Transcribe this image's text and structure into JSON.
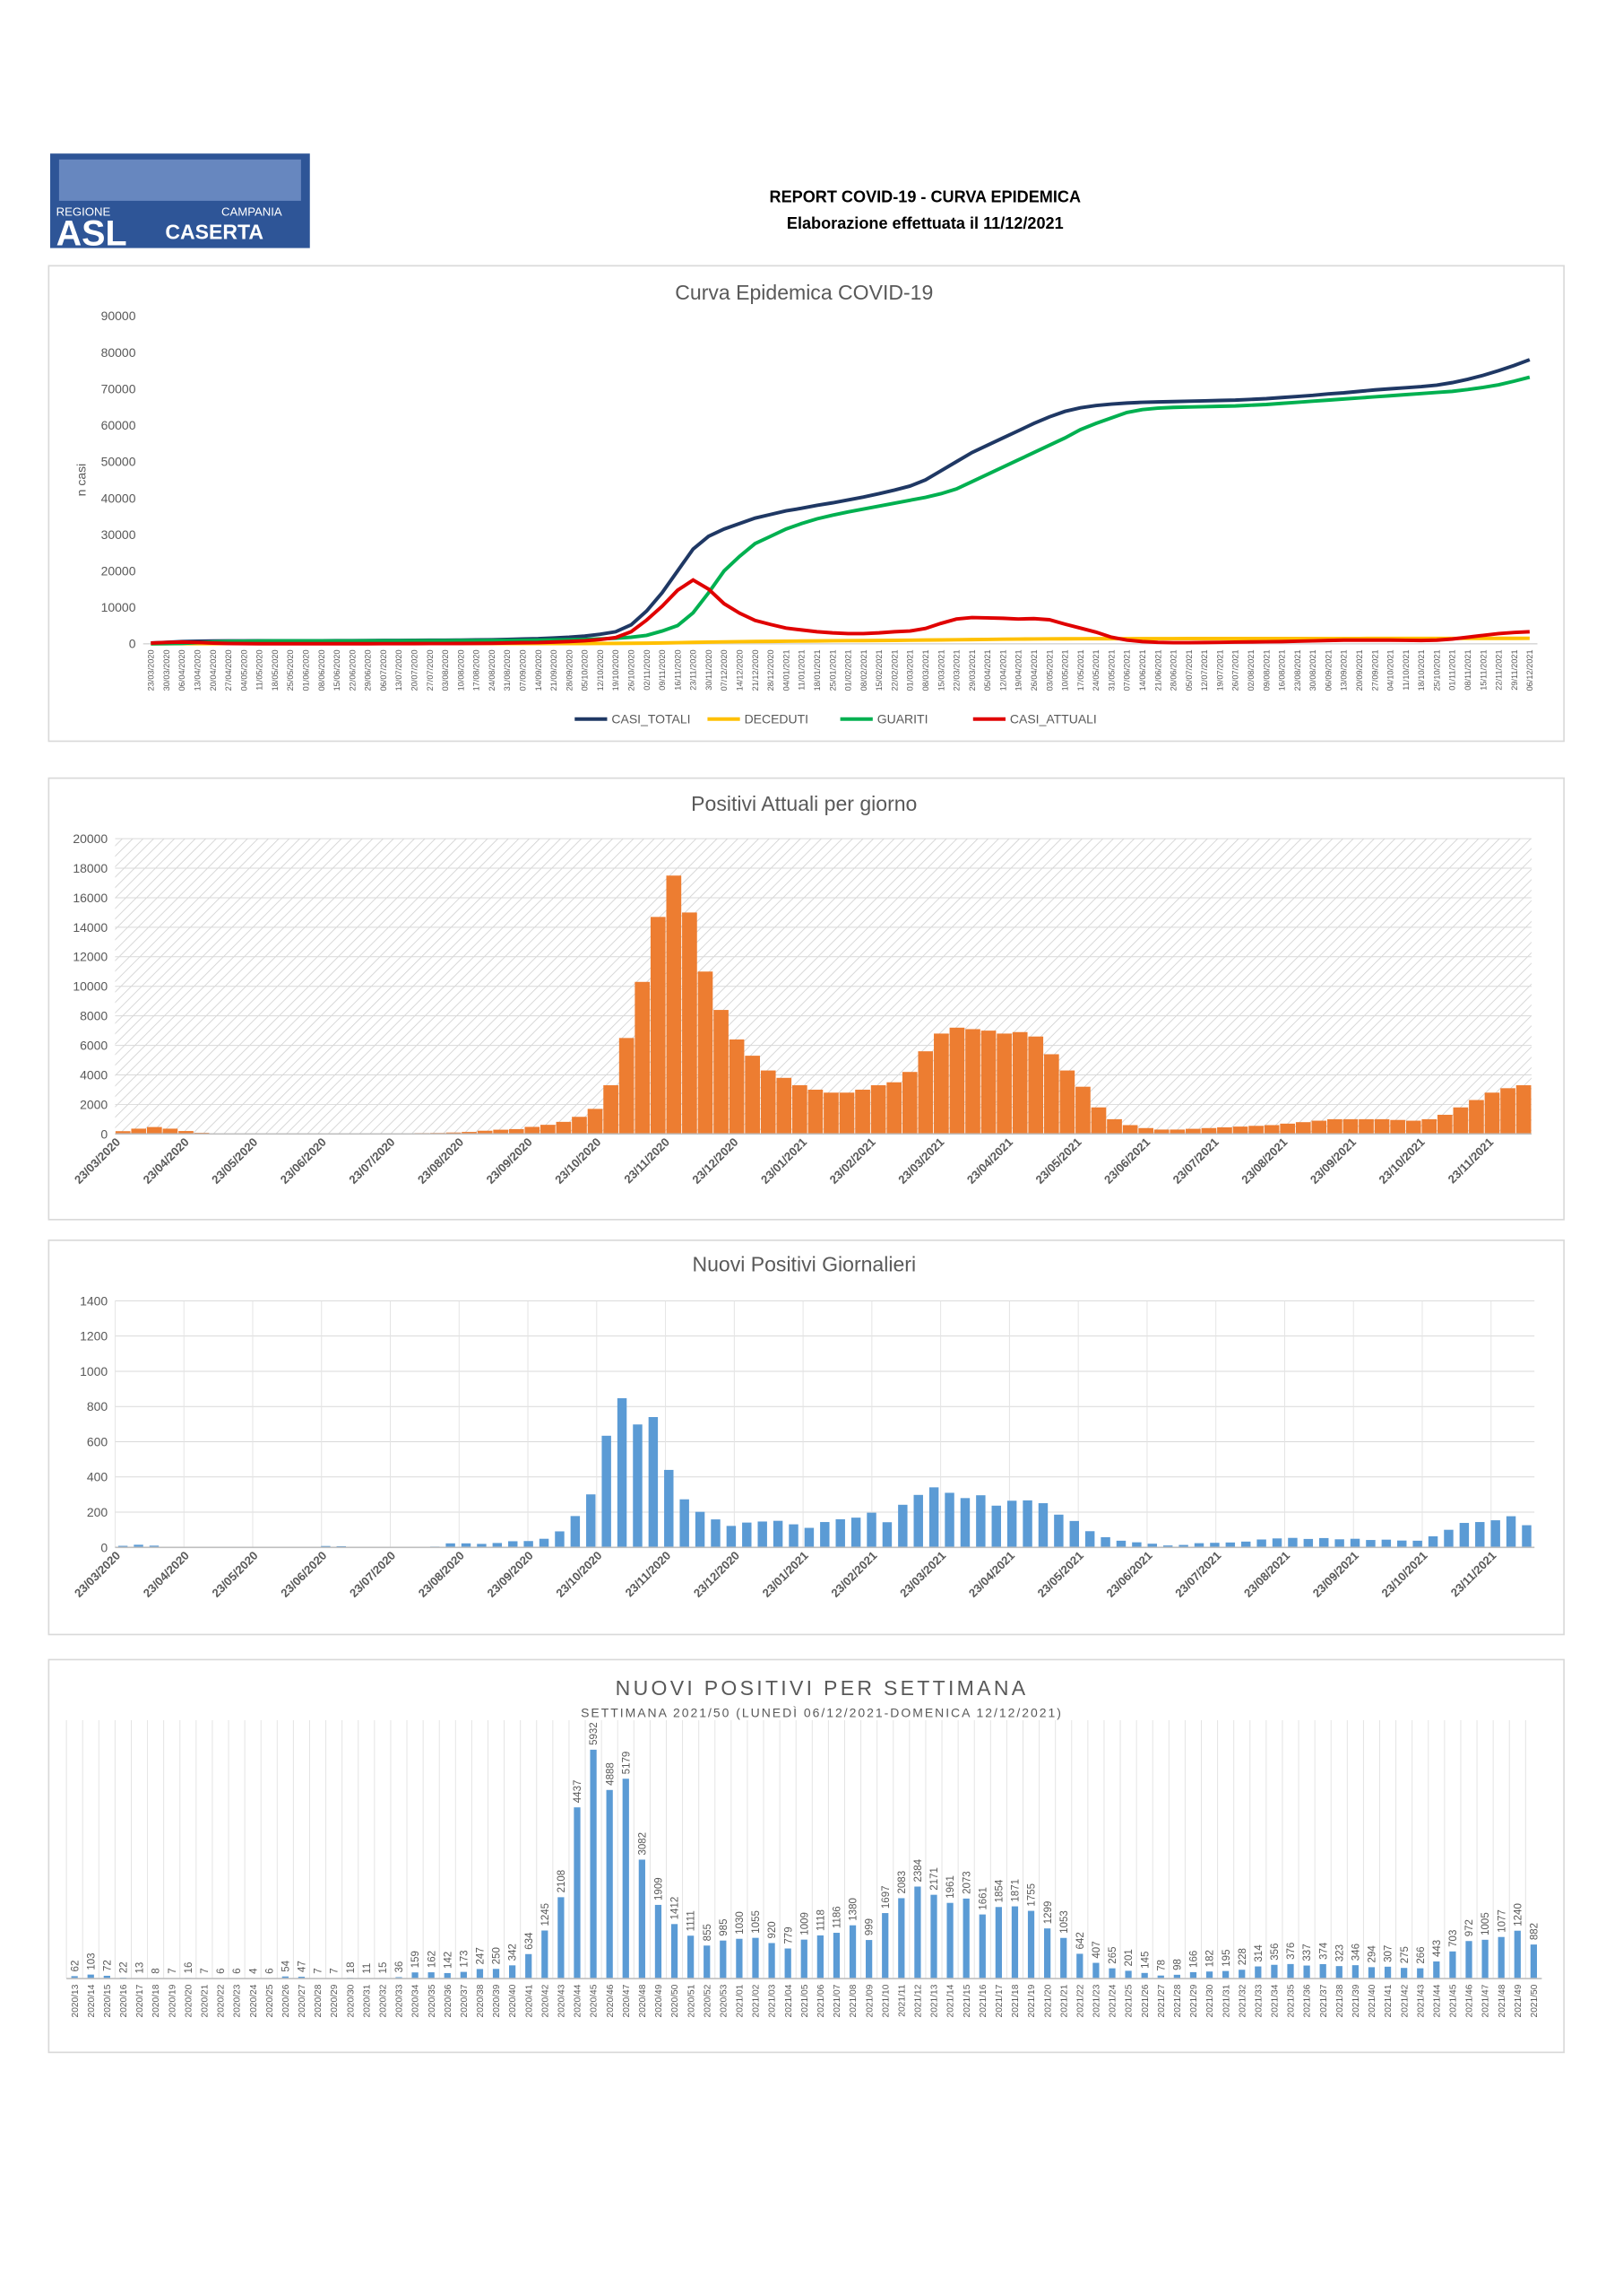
{
  "header": {
    "logo": {
      "line1": "REGIONE",
      "line2": "CAMPANIA",
      "line3": "ASL",
      "line4": "CASERTA"
    },
    "title": "REPORT COVID-19 - CURVA EPIDEMICA",
    "subtitle": "Elaborazione effettuata il 11/12/2021"
  },
  "chart_data": [
    {
      "type": "line",
      "title": "Curva Epidemica COVID-19",
      "y_label": "n casi",
      "legend": "bottom",
      "ylim": [
        0,
        90000
      ],
      "yticks": [
        0,
        10000,
        20000,
        30000,
        40000,
        50000,
        60000,
        70000,
        80000,
        90000
      ],
      "categories": [
        "23/03/2020",
        "30/03/2020",
        "06/04/2020",
        "13/04/2020",
        "20/04/2020",
        "27/04/2020",
        "04/05/2020",
        "11/05/2020",
        "18/05/2020",
        "25/05/2020",
        "01/06/2020",
        "08/06/2020",
        "15/06/2020",
        "22/06/2020",
        "29/06/2020",
        "06/07/2020",
        "13/07/2020",
        "20/07/2020",
        "27/07/2020",
        "03/08/2020",
        "10/08/2020",
        "17/08/2020",
        "24/08/2020",
        "31/08/2020",
        "07/09/2020",
        "14/09/2020",
        "21/09/2020",
        "28/09/2020",
        "05/10/2020",
        "12/10/2020",
        "19/10/2020",
        "26/10/2020",
        "02/11/2020",
        "09/11/2020",
        "16/11/2020",
        "23/11/2020",
        "30/11/2020",
        "07/12/2020",
        "14/12/2020",
        "21/12/2020",
        "28/12/2020",
        "04/01/2021",
        "11/01/2021",
        "18/01/2021",
        "25/01/2021",
        "01/02/2021",
        "08/02/2021",
        "15/02/2021",
        "22/02/2021",
        "01/03/2021",
        "08/03/2021",
        "15/03/2021",
        "22/03/2021",
        "29/03/2021",
        "05/04/2021",
        "12/04/2021",
        "19/04/2021",
        "26/04/2021",
        "03/05/2021",
        "10/05/2021",
        "17/05/2021",
        "24/05/2021",
        "31/05/2021",
        "07/06/2021",
        "14/06/2021",
        "21/06/2021",
        "28/06/2021",
        "05/07/2021",
        "12/07/2021",
        "19/07/2021",
        "26/07/2021",
        "02/08/2021",
        "09/08/2021",
        "16/08/2021",
        "23/08/2021",
        "30/08/2021",
        "06/09/2021",
        "13/09/2021",
        "20/09/2021",
        "27/09/2021",
        "04/10/2021",
        "11/10/2021",
        "18/10/2021",
        "25/10/2021",
        "01/11/2021",
        "08/11/2021",
        "15/11/2021",
        "22/11/2021",
        "29/11/2021",
        "06/12/2021"
      ],
      "series": [
        {
          "name": "CASI_TOTALI",
          "color": "#1f3864",
          "values": [
            200,
            400,
            600,
            700,
            750,
            780,
            800,
            810,
            820,
            820,
            830,
            830,
            840,
            850,
            880,
            900,
            920,
            940,
            960,
            980,
            1000,
            1050,
            1100,
            1200,
            1300,
            1400,
            1600,
            1800,
            2100,
            2600,
            3300,
            5200,
            9000,
            14000,
            20000,
            26000,
            29500,
            31500,
            33000,
            34500,
            35500,
            36500,
            37200,
            38000,
            38700,
            39500,
            40300,
            41200,
            42200,
            43300,
            45000,
            47500,
            50000,
            52500,
            54500,
            56500,
            58500,
            60500,
            62300,
            63800,
            64800,
            65400,
            65800,
            66100,
            66300,
            66400,
            66500,
            66600,
            66700,
            66800,
            66900,
            67100,
            67300,
            67600,
            67900,
            68200,
            68600,
            68900,
            69300,
            69700,
            70000,
            70300,
            70600,
            71000,
            71700,
            72600,
            73700,
            75000,
            76400,
            78000
          ]
        },
        {
          "name": "DECEDUTI",
          "color": "#ffc000",
          "values": [
            10,
            20,
            30,
            40,
            45,
            50,
            55,
            55,
            55,
            55,
            56,
            56,
            56,
            57,
            57,
            57,
            57,
            58,
            58,
            58,
            58,
            59,
            60,
            62,
            64,
            66,
            70,
            75,
            80,
            90,
            100,
            130,
            170,
            230,
            300,
            380,
            450,
            520,
            580,
            620,
            660,
            700,
            740,
            780,
            820,
            850,
            880,
            910,
            940,
            980,
            1020,
            1060,
            1100,
            1150,
            1200,
            1250,
            1290,
            1320,
            1350,
            1370,
            1380,
            1390,
            1400,
            1405,
            1410,
            1412,
            1414,
            1416,
            1418,
            1420,
            1422,
            1425,
            1428,
            1430,
            1433,
            1436,
            1440,
            1443,
            1446,
            1450,
            1453,
            1456,
            1460,
            1463,
            1467,
            1471,
            1476,
            1482,
            1490,
            1498
          ]
        },
        {
          "name": "GUARITI",
          "color": "#00b050",
          "values": [
            0,
            20,
            100,
            300,
            500,
            650,
            700,
            750,
            770,
            780,
            790,
            790,
            800,
            800,
            810,
            820,
            830,
            840,
            850,
            860,
            870,
            880,
            900,
            920,
            950,
            1000,
            1050,
            1100,
            1200,
            1350,
            1500,
            1800,
            2300,
            3500,
            5000,
            8500,
            14000,
            20000,
            24000,
            27500,
            29500,
            31500,
            33000,
            34300,
            35300,
            36200,
            37000,
            37800,
            38600,
            39400,
            40200,
            41200,
            42500,
            44500,
            46500,
            48500,
            50500,
            52500,
            54500,
            56500,
            58800,
            60500,
            62000,
            63500,
            64300,
            64700,
            64900,
            65000,
            65100,
            65200,
            65300,
            65500,
            65700,
            66000,
            66300,
            66600,
            66900,
            67200,
            67500,
            67800,
            68100,
            68400,
            68700,
            69000,
            69300,
            69800,
            70400,
            71100,
            72100,
            73200
          ]
        },
        {
          "name": "CASI_ATTUALI",
          "color": "#e00000",
          "values": [
            190,
            360,
            470,
            360,
            200,
            80,
            45,
            5,
            0,
            0,
            0,
            0,
            0,
            0,
            10,
            20,
            30,
            40,
            50,
            60,
            70,
            100,
            140,
            220,
            290,
            330,
            480,
            620,
            820,
            1160,
            1700,
            3300,
            6500,
            10300,
            14700,
            17500,
            15000,
            11000,
            8400,
            6400,
            5300,
            4300,
            3800,
            3300,
            3000,
            2800,
            2800,
            3000,
            3300,
            3500,
            4200,
            5600,
            6800,
            7200,
            7100,
            7000,
            6800,
            6900,
            6600,
            5400,
            4300,
            3200,
            1800,
            1000,
            600,
            400,
            300,
            300,
            350,
            400,
            450,
            500,
            550,
            600,
            700,
            800,
            900,
            1000,
            1000,
            1000,
            1000,
            950,
            900,
            1000,
            1300,
            1800,
            2300,
            2800,
            3100,
            3300
          ]
        }
      ]
    },
    {
      "type": "bar",
      "title": "Positivi Attuali per giorno",
      "color": "#ed7d31",
      "background": "hatched",
      "grid": true,
      "ylim": [
        0,
        20000
      ],
      "yticks": [
        0,
        2000,
        4000,
        6000,
        8000,
        10000,
        12000,
        14000,
        16000,
        18000,
        20000
      ],
      "xtick_labels": [
        "23/03/2020",
        "23/04/2020",
        "23/05/2020",
        "23/06/2020",
        "23/07/2020",
        "23/08/2020",
        "23/09/2020",
        "23/10/2020",
        "23/11/2020",
        "23/12/2020",
        "23/01/2021",
        "23/02/2021",
        "23/03/2021",
        "23/04/2021",
        "23/05/2021",
        "23/06/2021",
        "23/07/2021",
        "23/08/2021",
        "23/09/2021",
        "23/10/2021",
        "23/11/2021"
      ],
      "values": [
        190,
        360,
        470,
        360,
        200,
        80,
        45,
        5,
        0,
        0,
        0,
        0,
        0,
        0,
        10,
        20,
        30,
        40,
        50,
        60,
        70,
        100,
        140,
        220,
        290,
        330,
        480,
        620,
        820,
        1160,
        1700,
        3300,
        6500,
        10300,
        14700,
        17500,
        15000,
        11000,
        8400,
        6400,
        5300,
        4300,
        3800,
        3300,
        3000,
        2800,
        2800,
        3000,
        3300,
        3500,
        4200,
        5600,
        6800,
        7200,
        7100,
        7000,
        6800,
        6900,
        6600,
        5400,
        4300,
        3200,
        1800,
        1000,
        600,
        400,
        300,
        300,
        350,
        400,
        450,
        500,
        550,
        600,
        700,
        800,
        900,
        1000,
        1000,
        1000,
        1000,
        950,
        900,
        1000,
        1300,
        1800,
        2300,
        2800,
        3100,
        3300
      ]
    },
    {
      "type": "bar",
      "title": "Nuovi Positivi Giornalieri",
      "color": "#5b9bd5",
      "background": "plain",
      "grid": true,
      "ylim": [
        0,
        1400
      ],
      "yticks": [
        0,
        200,
        400,
        600,
        800,
        1000,
        1200,
        1400
      ],
      "xtick_labels": [
        "23/03/2020",
        "23/04/2020",
        "23/05/2020",
        "23/06/2020",
        "23/07/2020",
        "23/08/2020",
        "23/09/2020",
        "23/10/2020",
        "23/11/2020",
        "23/12/2020",
        "23/01/2021",
        "23/02/2021",
        "23/03/2021",
        "23/04/2021",
        "23/05/2021",
        "23/06/2021",
        "23/07/2021",
        "23/08/2021",
        "23/09/2021",
        "23/10/2021",
        "23/11/2021"
      ],
      "values": [
        9,
        15,
        10,
        3,
        2,
        1,
        1,
        2,
        1,
        1,
        1,
        1,
        1,
        8,
        7,
        1,
        1,
        3,
        2,
        2,
        5,
        23,
        23,
        20,
        25,
        35,
        36,
        49,
        91,
        178,
        301,
        634,
        847,
        698,
        740,
        440,
        273,
        202,
        159,
        122,
        141,
        147,
        151,
        131,
        111,
        144,
        160,
        169,
        197,
        143,
        242,
        298,
        341,
        310,
        280,
        296,
        237,
        265,
        267,
        251,
        186,
        150,
        92,
        58,
        38,
        29,
        21,
        11,
        14,
        24,
        26,
        28,
        33,
        45,
        51,
        54,
        48,
        53,
        46,
        49,
        42,
        44,
        39,
        38,
        63,
        100,
        139,
        144,
        154,
        177,
        126
      ]
    },
    {
      "type": "bar",
      "title": "NUOVI POSITIVI PER SETTIMANA",
      "subtitle": "SETTIMANA 2021/50 (LUNEDÌ 06/12/2021-DOMENICA 12/12/2021)",
      "color": "#5b9bd5",
      "categories": [
        "2020/13",
        "2020/14",
        "2020/15",
        "2020/16",
        "2020/17",
        "2020/18",
        "2020/19",
        "2020/20",
        "2020/21",
        "2020/22",
        "2020/23",
        "2020/24",
        "2020/25",
        "2020/26",
        "2020/27",
        "2020/28",
        "2020/29",
        "2020/30",
        "2020/31",
        "2020/32",
        "2020/33",
        "2020/34",
        "2020/35",
        "2020/36",
        "2020/37",
        "2020/38",
        "2020/39",
        "2020/40",
        "2020/41",
        "2020/42",
        "2020/43",
        "2020/44",
        "2020/45",
        "2020/46",
        "2020/47",
        "2020/48",
        "2020/49",
        "2020/50",
        "2020/51",
        "2020/52",
        "2020/53",
        "2021/01",
        "2021/02",
        "2021/03",
        "2021/04",
        "2021/05",
        "2021/06",
        "2021/07",
        "2021/08",
        "2021/09",
        "2021/10",
        "2021/11",
        "2021/12",
        "2021/13",
        "2021/14",
        "2021/15",
        "2021/16",
        "2021/17",
        "2021/18",
        "2021/19",
        "2021/20",
        "2021/21",
        "2021/22",
        "2021/23",
        "2021/24",
        "2021/25",
        "2021/26",
        "2021/27",
        "2021/28",
        "2021/29",
        "2021/30",
        "2021/31",
        "2021/32",
        "2021/33",
        "2021/34",
        "2021/35",
        "2021/36",
        "2021/37",
        "2021/38",
        "2021/39",
        "2021/40",
        "2021/41",
        "2021/42",
        "2021/43",
        "2021/44",
        "2021/45",
        "2021/46",
        "2021/47",
        "2021/48",
        "2021/49",
        "2021/50"
      ],
      "values": [
        62,
        103,
        72,
        22,
        13,
        8,
        7,
        16,
        7,
        6,
        6,
        4,
        6,
        54,
        47,
        7,
        7,
        18,
        11,
        15,
        36,
        159,
        162,
        142,
        173,
        247,
        250,
        342,
        634,
        1245,
        2108,
        4437,
        5932,
        4888,
        5179,
        3082,
        1909,
        1412,
        1111,
        855,
        985,
        1030,
        1055,
        920,
        779,
        1009,
        1118,
        1186,
        1380,
        999,
        1697,
        2083,
        2384,
        2171,
        1961,
        2073,
        1661,
        1854,
        1871,
        1755,
        1299,
        1053,
        642,
        407,
        265,
        201,
        145,
        78,
        98,
        166,
        182,
        195,
        228,
        314,
        356,
        376,
        337,
        374,
        323,
        346,
        294,
        307,
        275,
        266,
        443,
        703,
        972,
        1005,
        1077,
        1240,
        882
      ]
    }
  ]
}
